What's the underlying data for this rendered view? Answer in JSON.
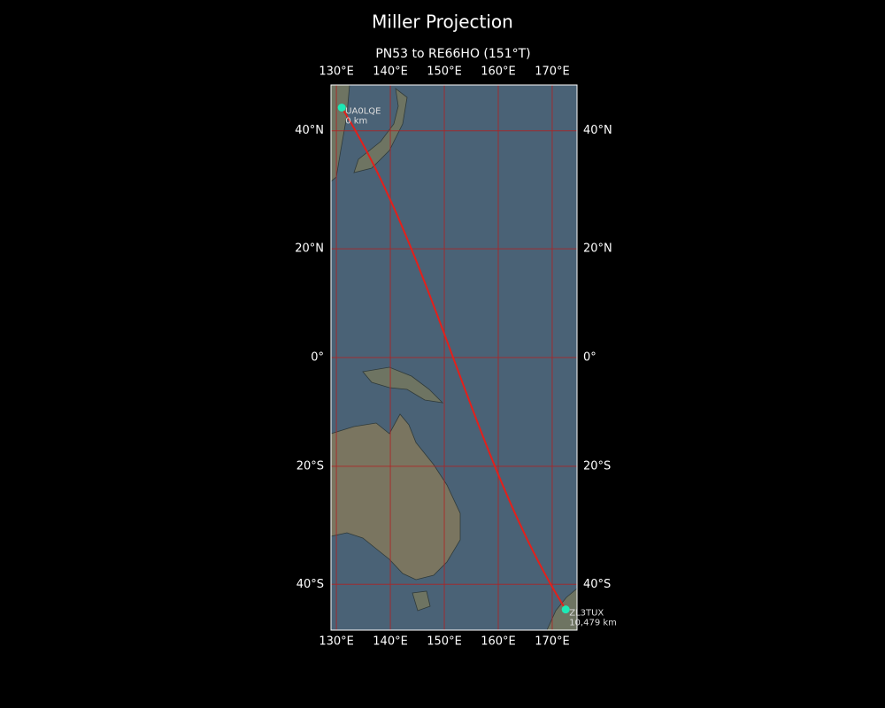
{
  "map": {
    "title": "Miller Projection",
    "subtitle": "PN53 to RE66HO (151°T)",
    "projection": "miller",
    "xlim": [
      129,
      174.6
    ],
    "ylim": [
      -47,
      47
    ],
    "xticks": [
      {
        "value": 130,
        "label": "130°E"
      },
      {
        "value": 140,
        "label": "140°E"
      },
      {
        "value": 150,
        "label": "150°E"
      },
      {
        "value": 160,
        "label": "160°E"
      },
      {
        "value": 170,
        "label": "170°E"
      }
    ],
    "yticks": [
      {
        "value": -40,
        "label": "40°S"
      },
      {
        "value": -20,
        "label": "20°S"
      },
      {
        "value": 0,
        "label": "0°"
      },
      {
        "value": 20,
        "label": "20°N"
      },
      {
        "value": 40,
        "label": "40°N"
      }
    ],
    "grid": true,
    "grid_color": "#b22222",
    "path_color": "#e3201b",
    "stations": [
      {
        "name": "UA0LQE",
        "distance": "0 km",
        "lon": 131,
        "lat": 43.6,
        "color": "#1de9b6"
      },
      {
        "name": "ZL3TUX",
        "distance": "10,479 km",
        "lon": 172.5,
        "lat": -43.9,
        "color": "#1de9b6"
      }
    ]
  }
}
